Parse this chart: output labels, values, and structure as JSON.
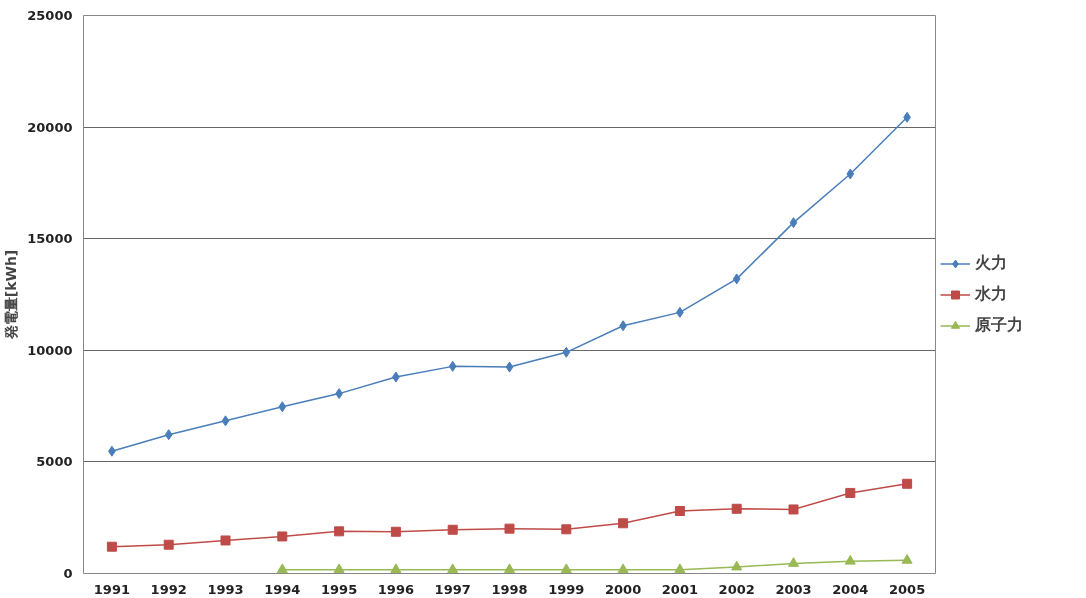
{
  "chart_data": {
    "type": "line",
    "ylabel": "発電量[kWh]",
    "categories": [
      "1991",
      "1992",
      "1993",
      "1994",
      "1995",
      "1996",
      "1997",
      "1998",
      "1999",
      "2000",
      "2001",
      "2002",
      "2003",
      "2004",
      "2005"
    ],
    "series": [
      {
        "name": "火力",
        "color": "#4a7ebb",
        "marker": "diamond",
        "values": [
          5480,
          6220,
          6840,
          7470,
          8060,
          8800,
          9280,
          9250,
          9910,
          11100,
          11700,
          13200,
          15720,
          17900,
          20440
        ]
      },
      {
        "name": "水力",
        "color": "#be4b48",
        "marker": "square",
        "values": [
          1200,
          1290,
          1480,
          1660,
          1890,
          1870,
          1960,
          2010,
          1980,
          2250,
          2800,
          2900,
          2870,
          3610,
          4020
        ]
      },
      {
        "name": "原子力",
        "color": "#98b954",
        "marker": "triangle",
        "values": [
          null,
          null,
          null,
          170,
          170,
          170,
          170,
          170,
          170,
          170,
          170,
          290,
          450,
          550,
          590
        ]
      }
    ],
    "ylim": [
      0,
      25000
    ],
    "yticks": [
      0,
      5000,
      10000,
      15000,
      20000,
      25000
    ],
    "grid": "y",
    "legend": "right"
  }
}
